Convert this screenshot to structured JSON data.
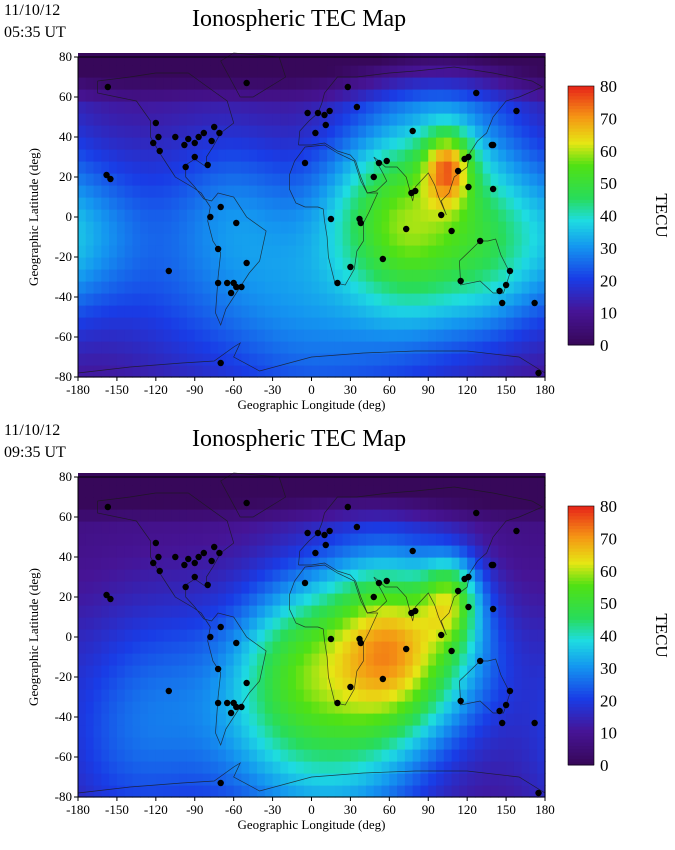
{
  "chart_data": [
    {
      "type": "heatmap",
      "date": "11/10/12",
      "time": "05:35 UT",
      "title": "Ionospheric TEC Map",
      "xlabel": "Geographic Longitude (deg)",
      "ylabel": "Geographic Latitude (deg)",
      "xlim": [
        -180,
        180
      ],
      "ylim": [
        -80,
        80
      ],
      "xticks": [
        -180,
        -150,
        -120,
        -90,
        -60,
        -30,
        0,
        30,
        60,
        90,
        120,
        150,
        180
      ],
      "yticks": [
        -80,
        -60,
        -40,
        -20,
        0,
        20,
        40,
        60,
        80
      ],
      "colorbar": {
        "label": "TECU",
        "range": [
          0,
          80
        ],
        "ticks": [
          0,
          10,
          20,
          30,
          40,
          50,
          60,
          70,
          80
        ]
      },
      "colors": {
        "low": "#3a0a5c",
        "mid": "#1fd0e0",
        "high": "#e8231a"
      },
      "peak": {
        "lon": 105,
        "lat": 25,
        "tecu": 76
      },
      "stations": [
        [
          -157,
          65
        ],
        [
          -120,
          47
        ],
        [
          -118,
          40
        ],
        [
          -105,
          40
        ],
        [
          -95,
          39
        ],
        [
          -98,
          36
        ],
        [
          -90,
          37
        ],
        [
          -87,
          40
        ],
        [
          -83,
          42
        ],
        [
          -75,
          45
        ],
        [
          -77,
          38
        ],
        [
          -90,
          30
        ],
        [
          -97,
          25
        ],
        [
          -80,
          26
        ],
        [
          -71,
          42
        ],
        [
          -122,
          37
        ],
        [
          -117,
          33
        ],
        [
          -158,
          21
        ],
        [
          -155,
          19
        ],
        [
          -110,
          -27
        ],
        [
          -78,
          0
        ],
        [
          -70,
          5
        ],
        [
          -58,
          -3
        ],
        [
          -72,
          -16
        ],
        [
          -50,
          -23
        ],
        [
          -72,
          -33
        ],
        [
          -65,
          -33
        ],
        [
          -60,
          -33
        ],
        [
          -58,
          -35
        ],
        [
          -54,
          -35
        ],
        [
          -62,
          -38
        ],
        [
          -70,
          -73
        ],
        [
          -50,
          67
        ],
        [
          -3,
          52
        ],
        [
          5,
          52
        ],
        [
          10,
          51
        ],
        [
          14,
          53
        ],
        [
          28,
          65
        ],
        [
          35,
          55
        ],
        [
          11,
          46
        ],
        [
          3,
          42
        ],
        [
          -5,
          27
        ],
        [
          15,
          -1
        ],
        [
          37,
          -1
        ],
        [
          38,
          -3
        ],
        [
          30,
          -25
        ],
        [
          20,
          -33
        ],
        [
          58,
          28
        ],
        [
          52,
          27
        ],
        [
          55,
          -21
        ],
        [
          73,
          -6
        ],
        [
          77,
          12
        ],
        [
          78,
          43
        ],
        [
          80,
          13
        ],
        [
          100,
          1
        ],
        [
          108,
          -7
        ],
        [
          113,
          23
        ],
        [
          118,
          29
        ],
        [
          121,
          30
        ],
        [
          121,
          15
        ],
        [
          139,
          36
        ],
        [
          140,
          36
        ],
        [
          127,
          62
        ],
        [
          130,
          -12
        ],
        [
          140,
          14
        ],
        [
          115,
          -32
        ],
        [
          147,
          -43
        ],
        [
          150,
          -34
        ],
        [
          145,
          -37
        ],
        [
          153,
          -27
        ],
        [
          158,
          53
        ],
        [
          172,
          -43
        ],
        [
          175,
          -78
        ],
        [
          48,
          20
        ]
      ]
    },
    {
      "type": "heatmap",
      "date": "11/10/12",
      "time": "09:35 UT",
      "title": "Ionospheric TEC Map",
      "xlabel": "Geographic Longitude (deg)",
      "ylabel": "Geographic Latitude (deg)",
      "xlim": [
        -180,
        180
      ],
      "ylim": [
        -80,
        80
      ],
      "xticks": [
        -180,
        -150,
        -120,
        -90,
        -60,
        -30,
        0,
        30,
        60,
        90,
        120,
        150,
        180
      ],
      "yticks": [
        -80,
        -60,
        -40,
        -20,
        0,
        20,
        40,
        60,
        80
      ],
      "colorbar": {
        "label": "TECU",
        "range": [
          0,
          80
        ],
        "ticks": [
          0,
          10,
          20,
          30,
          40,
          50,
          60,
          70,
          80
        ]
      },
      "colors": {
        "low": "#3a0a5c",
        "mid": "#1fd0e0",
        "high": "#e8231a"
      },
      "peak": {
        "lon": 70,
        "lat": -5,
        "tecu": 72
      },
      "stations": [
        [
          -157,
          65
        ],
        [
          -120,
          47
        ],
        [
          -118,
          40
        ],
        [
          -105,
          40
        ],
        [
          -95,
          39
        ],
        [
          -98,
          36
        ],
        [
          -90,
          37
        ],
        [
          -87,
          40
        ],
        [
          -83,
          42
        ],
        [
          -75,
          45
        ],
        [
          -77,
          38
        ],
        [
          -90,
          30
        ],
        [
          -97,
          25
        ],
        [
          -80,
          26
        ],
        [
          -71,
          42
        ],
        [
          -122,
          37
        ],
        [
          -117,
          33
        ],
        [
          -158,
          21
        ],
        [
          -155,
          19
        ],
        [
          -110,
          -27
        ],
        [
          -78,
          0
        ],
        [
          -70,
          5
        ],
        [
          -58,
          -3
        ],
        [
          -72,
          -16
        ],
        [
          -50,
          -23
        ],
        [
          -72,
          -33
        ],
        [
          -65,
          -33
        ],
        [
          -60,
          -33
        ],
        [
          -58,
          -35
        ],
        [
          -54,
          -35
        ],
        [
          -62,
          -38
        ],
        [
          -70,
          -73
        ],
        [
          -50,
          67
        ],
        [
          -3,
          52
        ],
        [
          5,
          52
        ],
        [
          10,
          51
        ],
        [
          14,
          53
        ],
        [
          28,
          65
        ],
        [
          35,
          55
        ],
        [
          11,
          46
        ],
        [
          3,
          42
        ],
        [
          -5,
          27
        ],
        [
          15,
          -1
        ],
        [
          37,
          -1
        ],
        [
          38,
          -3
        ],
        [
          30,
          -25
        ],
        [
          20,
          -33
        ],
        [
          58,
          28
        ],
        [
          52,
          27
        ],
        [
          55,
          -21
        ],
        [
          73,
          -6
        ],
        [
          77,
          12
        ],
        [
          78,
          43
        ],
        [
          80,
          13
        ],
        [
          100,
          1
        ],
        [
          108,
          -7
        ],
        [
          113,
          23
        ],
        [
          118,
          29
        ],
        [
          121,
          30
        ],
        [
          121,
          15
        ],
        [
          139,
          36
        ],
        [
          140,
          36
        ],
        [
          127,
          62
        ],
        [
          130,
          -12
        ],
        [
          140,
          14
        ],
        [
          115,
          -32
        ],
        [
          147,
          -43
        ],
        [
          150,
          -34
        ],
        [
          145,
          -37
        ],
        [
          153,
          -27
        ],
        [
          158,
          53
        ],
        [
          172,
          -43
        ],
        [
          175,
          -78
        ],
        [
          48,
          20
        ]
      ]
    }
  ]
}
